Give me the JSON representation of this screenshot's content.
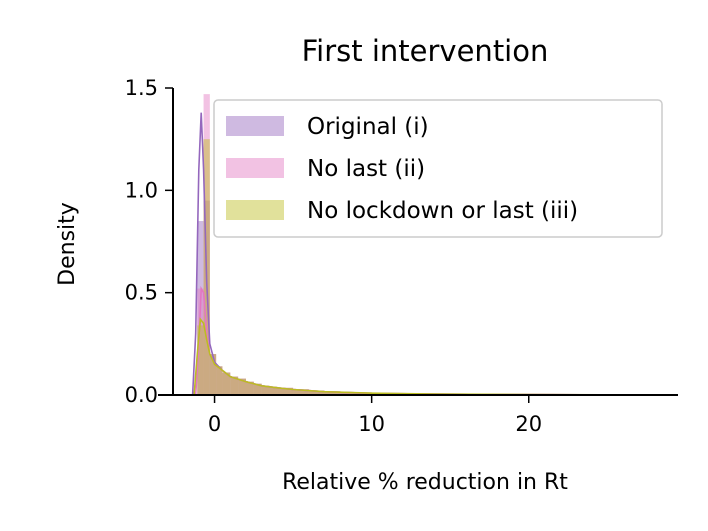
{
  "chart_data": {
    "type": "area",
    "title": "First intervention",
    "xlabel": "Relative % reduction in Rt",
    "ylabel": "Density",
    "xlim": [
      -3.6,
      29.5
    ],
    "ylim": [
      0,
      1.5
    ],
    "x_ticks": [
      0,
      10,
      20
    ],
    "y_ticks": [
      0.0,
      0.5,
      1.0,
      1.5
    ],
    "x_tick_labels": [
      "0",
      "10",
      "20"
    ],
    "y_tick_labels": [
      "0.0",
      "0.5",
      "1.0",
      "1.5"
    ],
    "grid": false,
    "legend": {
      "position": "top-right"
    },
    "hist_bin_edges": [
      -1.1,
      -0.7,
      -0.3,
      0.1,
      0.5,
      1.0,
      1.5,
      2.0,
      2.5,
      3.0,
      3.5,
      4.0,
      5.0,
      6.0,
      7.0,
      8.0,
      10.0,
      12.0,
      14.0,
      17.0,
      20.0,
      24.0,
      28.0
    ],
    "series": [
      {
        "name": "Original (i)",
        "color": "#9467bd",
        "kde": {
          "x": [
            -1.4,
            -1.2,
            -1.0,
            -0.85,
            -0.7,
            -0.5,
            -0.3,
            0.0,
            0.5,
            1.0,
            2.0,
            3.0,
            4.0,
            5.0,
            7.0,
            10.0,
            15.0,
            20.0,
            27.0
          ],
          "y": [
            0.0,
            0.3,
            1.1,
            1.38,
            1.1,
            0.55,
            0.25,
            0.16,
            0.12,
            0.09,
            0.065,
            0.045,
            0.035,
            0.027,
            0.016,
            0.008,
            0.004,
            0.002,
            0.0
          ]
        },
        "hist": [
          0.85,
          0.95,
          0.2,
          0.14,
          0.11,
          0.09,
          0.08,
          0.065,
          0.055,
          0.045,
          0.04,
          0.035,
          0.028,
          0.022,
          0.018,
          0.013,
          0.009,
          0.006,
          0.004,
          0.003,
          0.002,
          0.001
        ]
      },
      {
        "name": "No last (ii)",
        "color": "#e377c2",
        "kde": {
          "x": [
            -1.2,
            -1.0,
            -0.85,
            -0.7,
            -0.5,
            -0.3,
            0.0,
            0.5,
            1.0,
            2.0,
            3.0,
            4.0,
            5.0,
            7.0,
            10.0,
            15.0,
            20.0,
            27.0
          ],
          "y": [
            0.0,
            0.25,
            0.52,
            0.5,
            0.3,
            0.2,
            0.15,
            0.12,
            0.09,
            0.065,
            0.045,
            0.035,
            0.027,
            0.016,
            0.008,
            0.004,
            0.002,
            0.0
          ]
        },
        "hist": [
          0.52,
          1.47,
          0.2,
          0.14,
          0.11,
          0.09,
          0.08,
          0.065,
          0.055,
          0.045,
          0.04,
          0.035,
          0.028,
          0.022,
          0.018,
          0.013,
          0.009,
          0.006,
          0.004,
          0.003,
          0.002,
          0.001
        ]
      },
      {
        "name": "No lockdown or last (iii)",
        "color": "#bcbd22",
        "kde": {
          "x": [
            -1.3,
            -1.1,
            -0.9,
            -0.7,
            -0.5,
            -0.3,
            0.0,
            0.5,
            1.0,
            2.0,
            3.0,
            4.0,
            5.0,
            7.0,
            10.0,
            14.0,
            20.0,
            28.0
          ],
          "y": [
            0.0,
            0.2,
            0.37,
            0.35,
            0.27,
            0.2,
            0.15,
            0.12,
            0.09,
            0.065,
            0.045,
            0.035,
            0.027,
            0.016,
            0.009,
            0.005,
            0.002,
            0.0
          ]
        },
        "hist": [
          0.34,
          1.25,
          0.2,
          0.14,
          0.11,
          0.09,
          0.08,
          0.065,
          0.055,
          0.045,
          0.04,
          0.035,
          0.028,
          0.022,
          0.018,
          0.013,
          0.009,
          0.006,
          0.004,
          0.003,
          0.002,
          0.001
        ]
      }
    ]
  }
}
